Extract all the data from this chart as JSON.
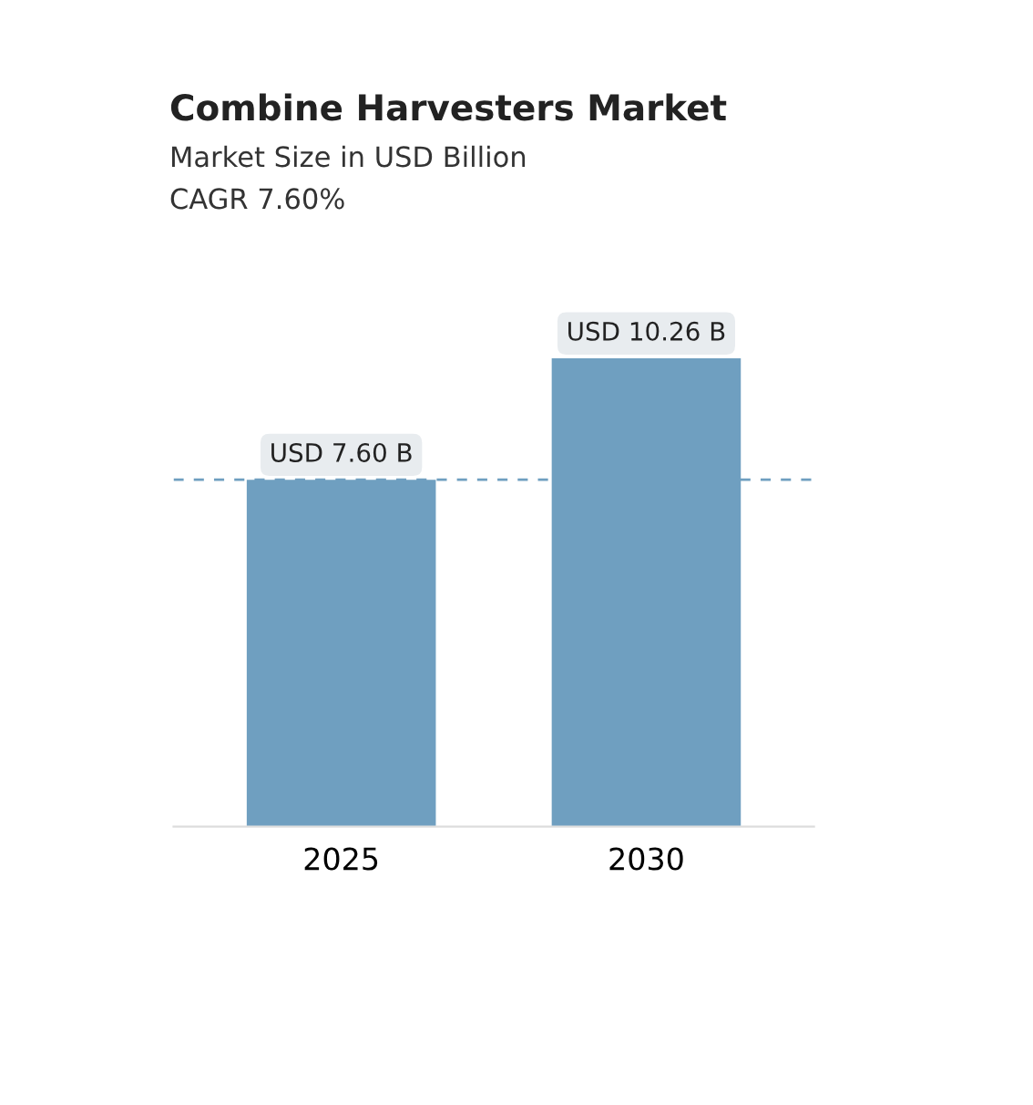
{
  "chart_data": {
    "type": "bar",
    "title": "Combine Harvesters Market",
    "subtitle": "Market Size in USD Billion",
    "annotations": [
      "CAGR 7.60%"
    ],
    "categories": [
      "2025",
      "2030"
    ],
    "values": [
      7.6,
      10.26
    ],
    "value_labels": [
      "USD 7.60 B",
      "USD 10.26 B"
    ],
    "color": "#6f9fc0",
    "ref_lines": [
      {
        "axis": "y",
        "value": 7.6,
        "color": "#6f9fc0",
        "line_style": "dashed"
      }
    ],
    "grid": false,
    "legend": false
  }
}
